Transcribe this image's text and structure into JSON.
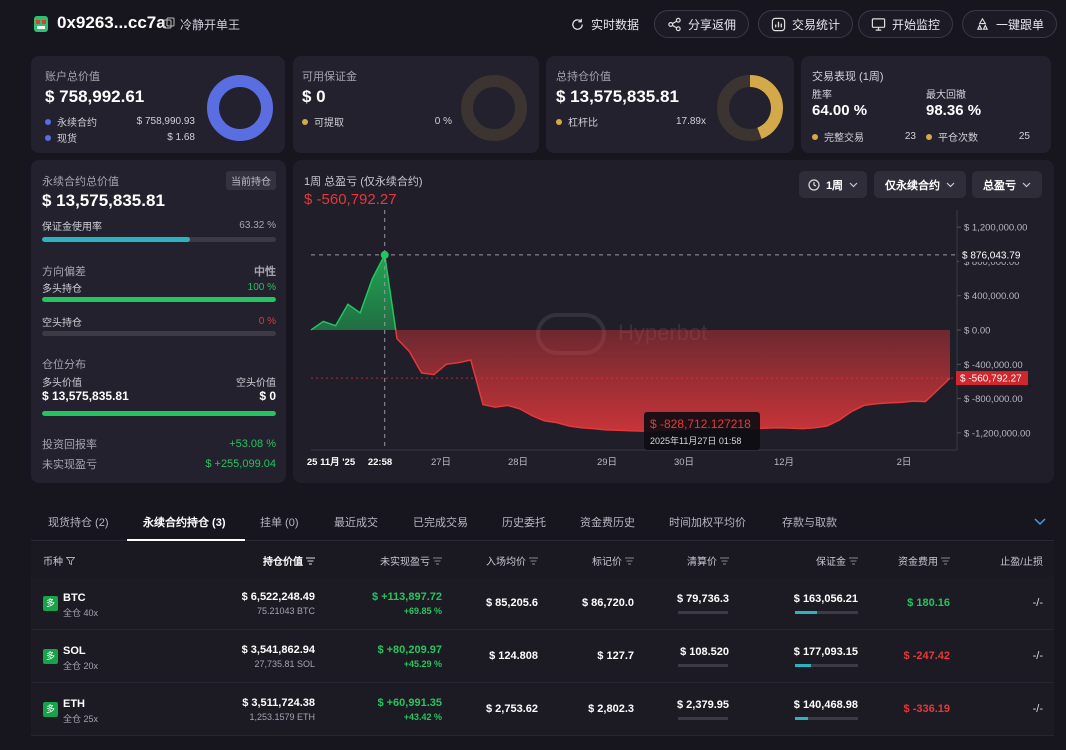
{
  "header": {
    "address": "0x9263...cc7a",
    "alias": "冷静开单王",
    "buttons": [
      "实时数据",
      "分享返佣",
      "交易统计",
      "开始监控",
      "一键跟单"
    ]
  },
  "colors": {
    "accent_blue": "#5b6ee1",
    "accent_gold": "#d4a94a",
    "green": "#22c55e",
    "red": "#e5383b",
    "teal": "#2bb3c0"
  },
  "cards": {
    "account": {
      "label": "账户总价值",
      "value": "$ 758,992.61",
      "rows": [
        {
          "name": "永续合约",
          "value": "$ 758,990.93"
        },
        {
          "name": "现货",
          "value": "$ 1.68"
        }
      ]
    },
    "margin": {
      "label": "可用保证金",
      "value": "$ 0",
      "rows": [
        {
          "name": "可提取",
          "value": "0 %"
        }
      ]
    },
    "position": {
      "label": "总持仓价值",
      "value": "$ 13,575,835.81",
      "rows": [
        {
          "name": "杠杆比",
          "value": "17.89x"
        }
      ]
    },
    "performance": {
      "label": "交易表现 (1周)",
      "winrate_label": "胜率",
      "winrate": "64.00 %",
      "drawdown_label": "最大回撤",
      "drawdown": "98.36 %",
      "completed_label": "完整交易",
      "completed": "23",
      "close_label": "平仓次数",
      "close": "25"
    }
  },
  "perp": {
    "label": "永续合约总价值",
    "tag": "当前持仓",
    "value": "$ 13,575,835.81",
    "margin_label": "保证金使用率",
    "margin_pct": "63.32 %",
    "margin_fill": 63.32,
    "bias_label": "方向偏差",
    "bias_value": "中性",
    "long_label": "多头持仓",
    "long_pct": "100 %",
    "long_fill": 100,
    "short_label": "空头持仓",
    "short_pct": "0 %",
    "short_fill": 0,
    "dist_label": "仓位分布",
    "long_value_label": "多头价值",
    "short_value_label": "空头价值",
    "long_value": "$ 13,575,835.81",
    "short_value": "$ 0",
    "dist_fill": 100,
    "roi_label": "投资回报率",
    "roi": "+53.08 %",
    "upnl_label": "未实现盈亏",
    "upnl": "$ +255,099.04"
  },
  "chart_data": {
    "type": "area",
    "title": "1周 总盈亏 (仅永续合约)",
    "current_value_label": "$ -560,792.27",
    "controls": {
      "period": "1周",
      "filter": "仅永续合约",
      "metric": "总盈亏"
    },
    "xticks": [
      "25 11月 '25",
      "22:58",
      "27日",
      "28日",
      "29日",
      "30日",
      "12月",
      "2日"
    ],
    "yticks": [
      "$ 1,200,000.00",
      "$ 800,000.00",
      "$ 400,000.00",
      "$ 0.00",
      "$ -400,000.00",
      "$ -800,000.00",
      "$ -1,200,000.00"
    ],
    "ylim": [
      -1400000,
      1400000
    ],
    "hover_value_label": "$ 876,043.79",
    "last_value_label": "$ -560,792.27",
    "tooltip_value": "$ -828,712.127218",
    "tooltip_date": "2025年11月27日 01:58",
    "values": [
      0,
      100000,
      50000,
      300000,
      200000,
      600000,
      876043,
      -100000,
      -250000,
      -500000,
      -520000,
      -400000,
      -380000,
      -350000,
      -870000,
      -900000,
      -880000,
      -920000,
      -1000000,
      -1060000,
      -1080000,
      -1120000,
      -1140000,
      -1150000,
      -1165000,
      -1170000,
      -1175000,
      -1180000,
      -1175000,
      -1170000,
      -1165000,
      -1150000,
      -1150000,
      -1145000,
      -1140000,
      -1145000,
      -1150000,
      -1145000,
      -1140000,
      -1145000,
      -1150000,
      -1140000,
      -1120000,
      -1050000,
      -950000,
      -880000,
      -860000,
      -850000,
      -845000,
      -830000,
      -835000,
      -700000,
      -560792
    ]
  },
  "tabs": [
    "现货持仓 (2)",
    "永续合约持仓 (3)",
    "挂单 (0)",
    "最近成交",
    "已完成交易",
    "历史委托",
    "资金费历史",
    "时间加权平均价",
    "存款与取款"
  ],
  "table": {
    "headers": [
      "币种",
      "持仓价值",
      "未实现盈亏",
      "入场均价",
      "标记价",
      "清算价",
      "保证金",
      "资金费用",
      "止盈/止损"
    ],
    "rows": [
      {
        "side": "多",
        "coin": "BTC",
        "mode": "全仓 40x",
        "value": "$ 6,522,248.49",
        "size": "75.21043 BTC",
        "pnl": "$ +113,897.72",
        "pnl_pct": "+69.85 %",
        "entry": "$ 85,205.6",
        "mark": "$ 86,720.0",
        "liq": "$ 79,736.3",
        "margin": "$ 163,056.21",
        "margin_fill": 35,
        "funding": "$ 180.16",
        "funding_pos": true,
        "tpsl": "-/-"
      },
      {
        "side": "多",
        "coin": "SOL",
        "mode": "全仓 20x",
        "value": "$ 3,541,862.94",
        "size": "27,735.81 SOL",
        "pnl": "$ +80,209.97",
        "pnl_pct": "+45.29 %",
        "entry": "$ 124.808",
        "mark": "$ 127.7",
        "liq": "$ 108.520",
        "margin": "$ 177,093.15",
        "margin_fill": 25,
        "funding": "$ -247.42",
        "funding_pos": false,
        "tpsl": "-/-"
      },
      {
        "side": "多",
        "coin": "ETH",
        "mode": "全仓 25x",
        "value": "$ 3,511,724.38",
        "size": "1,253.1579 ETH",
        "pnl": "$ +60,991.35",
        "pnl_pct": "+43.42 %",
        "entry": "$ 2,753.62",
        "mark": "$ 2,802.3",
        "liq": "$ 2,379.95",
        "margin": "$ 140,468.98",
        "margin_fill": 20,
        "funding": "$ -336.19",
        "funding_pos": false,
        "tpsl": "-/-"
      }
    ]
  }
}
